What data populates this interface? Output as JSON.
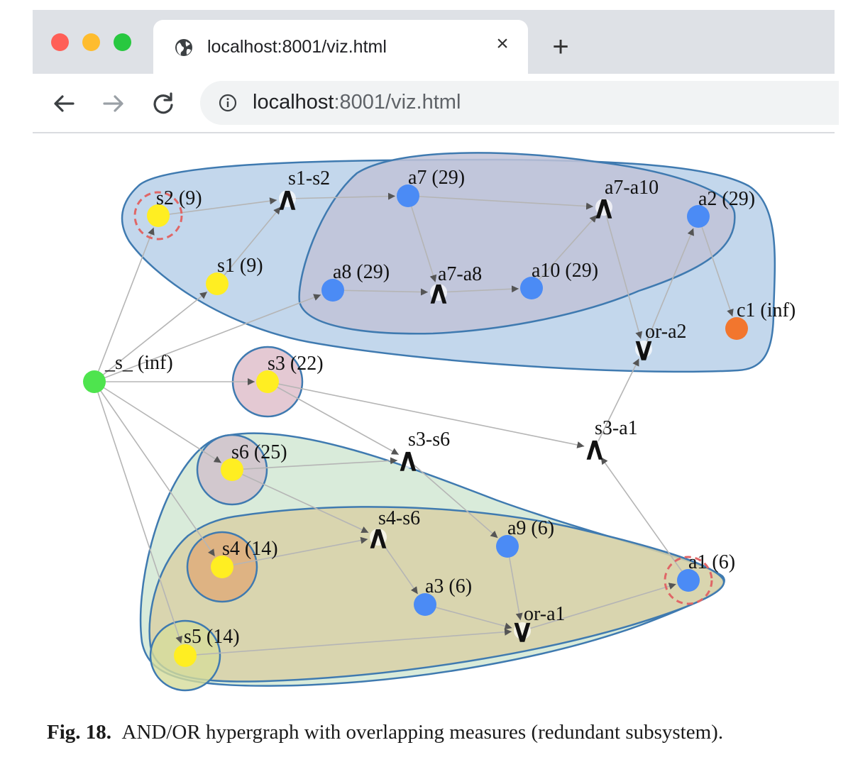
{
  "browser": {
    "tab_title": "localhost:8001/viz.html",
    "close_glyph": "×",
    "new_tab_glyph": "+",
    "url_host": "localhost",
    "url_rest": ":8001/viz.html",
    "icons": {
      "favicon": "globe-icon",
      "close": "close-icon",
      "new_tab": "plus-icon",
      "back": "arrow-left-icon",
      "forward": "arrow-right-icon",
      "reload": "reload-icon",
      "site_info": "info-icon"
    }
  },
  "graph": {
    "colors": {
      "yellow": "#ffee22",
      "blue": "#4b8bf5",
      "green": "#4ee44e",
      "orange": "#f2762e",
      "edge": "#b5b5b5",
      "arrow": "#555555",
      "hull_stroke": "#3f7ab0",
      "target_ring": "#e06666"
    },
    "nodes": [
      {
        "id": "_s_",
        "label": "_s_ (inf)",
        "kind": "source",
        "color": "green"
      },
      {
        "id": "s1",
        "label": "s1 (9)",
        "kind": "node",
        "color": "yellow"
      },
      {
        "id": "s2",
        "label": "s2 (9)",
        "kind": "node",
        "color": "yellow",
        "target": true
      },
      {
        "id": "s3",
        "label": "s3 (22)",
        "kind": "node",
        "color": "yellow"
      },
      {
        "id": "s4",
        "label": "s4 (14)",
        "kind": "node",
        "color": "yellow"
      },
      {
        "id": "s5",
        "label": "s5 (14)",
        "kind": "node",
        "color": "yellow"
      },
      {
        "id": "s6",
        "label": "s6 (25)",
        "kind": "node",
        "color": "yellow"
      },
      {
        "id": "a1",
        "label": "a1 (6)",
        "kind": "node",
        "color": "blue",
        "target": true
      },
      {
        "id": "a2",
        "label": "a2 (29)",
        "kind": "node",
        "color": "blue"
      },
      {
        "id": "a3",
        "label": "a3 (6)",
        "kind": "node",
        "color": "blue"
      },
      {
        "id": "a7",
        "label": "a7 (29)",
        "kind": "node",
        "color": "blue"
      },
      {
        "id": "a8",
        "label": "a8 (29)",
        "kind": "node",
        "color": "blue"
      },
      {
        "id": "a9",
        "label": "a9 (6)",
        "kind": "node",
        "color": "blue"
      },
      {
        "id": "a10",
        "label": "a10 (29)",
        "kind": "node",
        "color": "blue"
      },
      {
        "id": "c1",
        "label": "c1 (inf)",
        "kind": "node",
        "color": "orange"
      },
      {
        "id": "s1-s2",
        "label": "s1-s2",
        "kind": "and",
        "symbol": "∧"
      },
      {
        "id": "a7-a8",
        "label": "a7-a8",
        "kind": "and",
        "symbol": "∧"
      },
      {
        "id": "a7-a10",
        "label": "a7-a10",
        "kind": "and",
        "symbol": "∧"
      },
      {
        "id": "s3-s6",
        "label": "s3-s6",
        "kind": "and",
        "symbol": "∧"
      },
      {
        "id": "s4-s6",
        "label": "s4-s6",
        "kind": "and",
        "symbol": "∧"
      },
      {
        "id": "s3-a1",
        "label": "s3-a1",
        "kind": "and",
        "symbol": "∧"
      },
      {
        "id": "or-a2",
        "label": "or-a2",
        "kind": "or",
        "symbol": "∨"
      },
      {
        "id": "or-a1",
        "label": "or-a1",
        "kind": "or",
        "symbol": "∨"
      }
    ],
    "edges": [
      [
        "_s_",
        "s2"
      ],
      [
        "_s_",
        "s1"
      ],
      [
        "_s_",
        "a8"
      ],
      [
        "_s_",
        "s3"
      ],
      [
        "_s_",
        "s6"
      ],
      [
        "_s_",
        "s4"
      ],
      [
        "_s_",
        "s5"
      ],
      [
        "s2",
        "s1-s2"
      ],
      [
        "s1",
        "s1-s2"
      ],
      [
        "s1-s2",
        "a7"
      ],
      [
        "a7",
        "a7-a8"
      ],
      [
        "a8",
        "a7-a8"
      ],
      [
        "a7-a8",
        "a10"
      ],
      [
        "a7",
        "a7-a10"
      ],
      [
        "a10",
        "a7-a10"
      ],
      [
        "a7-a10",
        "or-a2"
      ],
      [
        "or-a2",
        "a2"
      ],
      [
        "a2",
        "c1"
      ],
      [
        "s3",
        "s3-s6"
      ],
      [
        "s6",
        "s3-s6"
      ],
      [
        "s3",
        "s3-a1"
      ],
      [
        "s3-a1",
        "or-a2"
      ],
      [
        "s6",
        "s4-s6"
      ],
      [
        "s4",
        "s4-s6"
      ],
      [
        "s3-s6",
        "a9"
      ],
      [
        "s4-s6",
        "a3"
      ],
      [
        "a9",
        "or-a1"
      ],
      [
        "a3",
        "or-a1"
      ],
      [
        "s5",
        "or-a1"
      ],
      [
        "or-a1",
        "a1"
      ],
      [
        "a1",
        "s3-a1"
      ]
    ],
    "groups": [
      {
        "name": "outer-top",
        "fill": "#b8d0e9"
      },
      {
        "name": "inner-top",
        "fill": "#c1c3d8"
      },
      {
        "name": "s3-circle",
        "fill": "#ddbcc8"
      },
      {
        "name": "bottom-outer",
        "fill": "#d2e8d4"
      },
      {
        "name": "bottom-inner",
        "fill": "#d8d1a7"
      },
      {
        "name": "s6-circle",
        "fill": "#cfbfca"
      },
      {
        "name": "s4-circle",
        "fill": "#dfaa78"
      },
      {
        "name": "s5-circle",
        "fill": "#d6dc9b"
      }
    ]
  },
  "caption": {
    "label": "Fig. 18.",
    "text": "AND/OR hypergraph with overlapping measures (redundant subsystem)."
  }
}
